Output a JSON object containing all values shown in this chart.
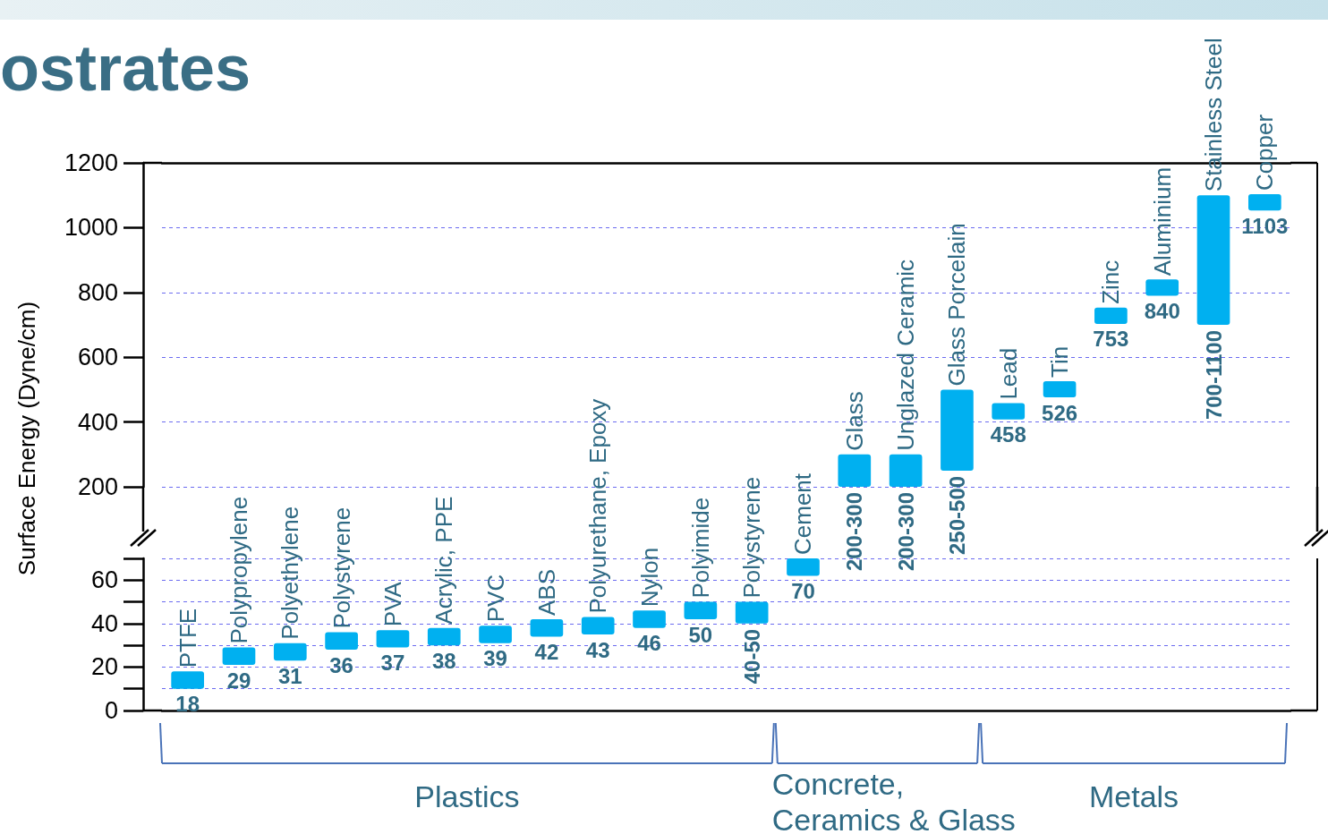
{
  "chart_data": [
    {
      "type": "bar",
      "title": "ostrates",
      "ylabel": "Surface Energy (Dyne/cm)",
      "categories": [
        null,
        null,
        null,
        null,
        null,
        null,
        null,
        null,
        null,
        null,
        null,
        null,
        null,
        "Glass",
        "Unglazed Ceramic",
        "Glass Porcelain",
        "Lead",
        "Tin",
        "Zinc",
        "Aluminium",
        "Stainless Steel",
        "Copper"
      ],
      "base": [
        null,
        null,
        null,
        null,
        null,
        null,
        null,
        null,
        null,
        null,
        null,
        null,
        null,
        200,
        200,
        250,
        408,
        476,
        703,
        790,
        700,
        1053
      ],
      "values": [
        null,
        null,
        null,
        null,
        null,
        null,
        null,
        null,
        null,
        null,
        null,
        null,
        null,
        100,
        100,
        250,
        50,
        50,
        50,
        50,
        400,
        50
      ],
      "value_labels": [
        null,
        null,
        null,
        null,
        null,
        null,
        null,
        null,
        null,
        null,
        null,
        null,
        null,
        "200-300",
        "200-300",
        "250-500",
        "458",
        "526",
        "753",
        "840",
        "700-1100",
        "1103"
      ],
      "color": "#00b0f0",
      "ylim": [
        200,
        1200
      ],
      "yticks": [
        200,
        400,
        600,
        800,
        1000,
        1200
      ],
      "grid": "y",
      "tick_labels": "y"
    },
    {
      "type": "bar",
      "categories": [
        "PTFE",
        "Polypropylene",
        "Polyethylene",
        "Polystyrene",
        "PVA",
        "Acrylic, PPE",
        "PVC",
        "ABS",
        "Polyurethane, Epoxy",
        "Nylon",
        "Polyimide",
        "Polystyrene",
        "Cement",
        null,
        null,
        null,
        null,
        null,
        null,
        null,
        null,
        null
      ],
      "base": [
        10,
        21,
        23,
        28,
        29,
        30,
        31,
        34,
        35,
        38,
        42,
        40,
        62,
        null,
        null,
        null,
        null,
        null,
        null,
        null,
        null,
        null
      ],
      "values": [
        8,
        8,
        8,
        8,
        8,
        8,
        8,
        8,
        8,
        8,
        8,
        10,
        8,
        null,
        null,
        null,
        null,
        null,
        null,
        null,
        null,
        null
      ],
      "value_labels": [
        "18",
        "29",
        "31",
        "36",
        "37",
        "38",
        "39",
        "42",
        "43",
        "46",
        "50",
        "40-50",
        "70",
        null,
        null,
        null,
        null,
        null,
        null,
        null,
        null,
        null
      ],
      "color": "#00b0f0",
      "ylim": [
        0,
        70
      ],
      "yticks": [
        0,
        {
          "value": 10,
          "label": null
        },
        20,
        {
          "value": 30,
          "label": null
        },
        40,
        {
          "value": 50,
          "label": null
        },
        60,
        {
          "value": 70,
          "label": null
        }
      ],
      "grid": "y",
      "tick_labels": "y",
      "annotations": [
        "Plastics",
        "Concrete, Ceramics & Glass",
        "Metals"
      ]
    }
  ]
}
